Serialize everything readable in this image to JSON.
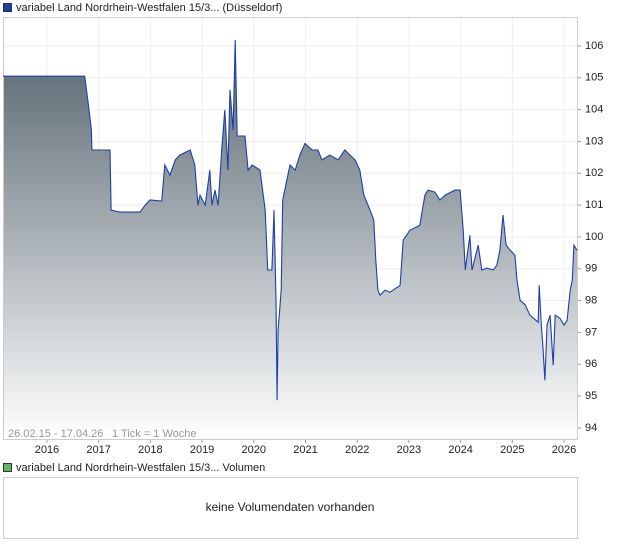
{
  "chart_data": {
    "type": "area",
    "series": [
      {
        "name": "variabel Land Nordrhein-Westfalen 15/3... (Düsseldorf)",
        "color": "#1f3fa8",
        "x": [
          2015.15,
          2016.73,
          2016.79,
          2016.86,
          2016.87,
          2017.22,
          2017.24,
          2017.41,
          2017.61,
          2017.8,
          2017.9,
          2017.99,
          2018.22,
          2018.28,
          2018.38,
          2018.48,
          2018.57,
          2018.77,
          2018.86,
          2018.92,
          2018.96,
          2019.06,
          2019.15,
          2019.19,
          2019.25,
          2019.31,
          2019.38,
          2019.44,
          2019.5,
          2019.54,
          2019.6,
          2019.64,
          2019.68,
          2019.83,
          2019.89,
          2019.97,
          2020.12,
          2020.22,
          2020.27,
          2020.35,
          2020.39,
          2020.43,
          2020.45,
          2020.47,
          2020.53,
          2020.56,
          2020.62,
          2020.7,
          2020.8,
          2020.89,
          2020.99,
          2021.13,
          2021.24,
          2021.32,
          2021.47,
          2021.63,
          2021.76,
          2021.86,
          2021.96,
          2022.05,
          2022.13,
          2022.25,
          2022.32,
          2022.36,
          2022.4,
          2022.44,
          2022.54,
          2022.63,
          2022.83,
          2022.89,
          2023.02,
          2023.21,
          2023.31,
          2023.37,
          2023.5,
          2023.6,
          2023.7,
          2023.89,
          2023.99,
          2024.05,
          2024.09,
          2024.14,
          2024.18,
          2024.22,
          2024.34,
          2024.41,
          2024.51,
          2024.63,
          2024.7,
          2024.76,
          2024.82,
          2024.88,
          2024.96,
          2025.05,
          2025.09,
          2025.15,
          2025.25,
          2025.34,
          2025.5,
          2025.52,
          2025.56,
          2025.59,
          2025.63,
          2025.67,
          2025.73,
          2025.79,
          2025.83,
          2025.92,
          2026.0,
          2026.06,
          2026.12,
          2026.16,
          2026.19,
          2026.25
        ],
        "values": [
          105.05,
          105.05,
          104.3,
          103.36,
          102.73,
          102.73,
          100.84,
          100.78,
          100.78,
          100.78,
          101.0,
          101.16,
          101.13,
          102.26,
          101.94,
          102.42,
          102.57,
          102.73,
          102.26,
          101.0,
          101.31,
          101.0,
          102.1,
          101.0,
          101.47,
          101.0,
          102.73,
          103.99,
          102.1,
          104.62,
          103.36,
          106.19,
          103.17,
          103.17,
          102.1,
          102.26,
          102.1,
          100.84,
          98.96,
          98.96,
          100.84,
          98.01,
          94.87,
          97.07,
          98.33,
          101.16,
          101.63,
          102.26,
          102.1,
          102.57,
          102.94,
          102.73,
          102.73,
          102.42,
          102.57,
          102.42,
          102.73,
          102.57,
          102.42,
          102.1,
          101.31,
          100.84,
          100.53,
          99.27,
          98.33,
          98.17,
          98.33,
          98.26,
          98.48,
          99.9,
          100.21,
          100.37,
          101.31,
          101.47,
          101.41,
          101.16,
          101.31,
          101.47,
          101.47,
          100.21,
          98.96,
          99.58,
          100.05,
          98.96,
          99.74,
          98.96,
          99.02,
          98.96,
          99.11,
          99.58,
          100.69,
          99.74,
          99.58,
          99.43,
          98.64,
          98.01,
          97.86,
          97.54,
          97.32,
          98.48,
          97.23,
          96.6,
          95.5,
          97.23,
          97.54,
          95.97,
          97.54,
          97.45,
          97.23,
          97.38,
          98.33,
          98.64,
          99.74,
          99.58
        ]
      }
    ],
    "xlim": [
      2015.15,
      2026.27
    ],
    "xticks": [
      2016,
      2017,
      2018,
      2019,
      2020,
      2021,
      2022,
      2023,
      2024,
      2025,
      2026
    ],
    "ylim": [
      93.62,
      106.91
    ],
    "yticks": [
      94,
      95,
      96,
      97,
      98,
      99,
      100,
      101,
      102,
      103,
      104,
      105,
      106
    ],
    "grid": true,
    "date_range": "26.02.15 - 17.04.26",
    "tick_note": "1 Tick = 1 Woche"
  },
  "volume": {
    "legend": "variabel Land Nordrhein-Westfalen 15/3... Volumen",
    "legend_color": "#5cb85c",
    "message": "keine Volumendaten vorhanden"
  }
}
